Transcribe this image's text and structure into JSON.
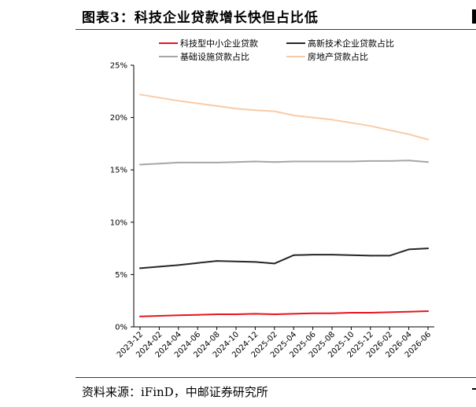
{
  "figure": {
    "title": "图表3：科技企业贷款增长快但占比低",
    "source": "资料来源：iFinD，中邮证券研究所"
  },
  "chart_data": {
    "type": "line",
    "x": [
      "2023-12",
      "2024-02",
      "2024-04",
      "2024-06",
      "2024-08",
      "2024-10",
      "2024-12",
      "2025-02",
      "2025-04",
      "2025-06",
      "2025-08",
      "2025-10",
      "2025-12",
      "2026-02",
      "2026-04",
      "2026-06"
    ],
    "ylim": [
      0,
      25
    ],
    "y_ticks": [
      "0%",
      "5%",
      "10%",
      "15%",
      "20%",
      "25%"
    ],
    "grid": false,
    "legend_position": "top",
    "series": [
      {
        "name": "科技型中小企业贷款",
        "color": "#e8141b",
        "values": [
          1.0,
          1.05,
          1.1,
          1.15,
          1.2,
          1.2,
          1.25,
          1.2,
          1.25,
          1.3,
          1.3,
          1.35,
          1.35,
          1.4,
          1.45,
          1.5
        ]
      },
      {
        "name": "高新技术企业贷款占比",
        "color": "#262626",
        "values": [
          5.6,
          5.75,
          5.9,
          6.1,
          6.3,
          6.25,
          6.2,
          6.05,
          6.85,
          6.9,
          6.9,
          6.85,
          6.8,
          6.8,
          7.4,
          7.5
        ]
      },
      {
        "name": "基础设施贷款占比",
        "color": "#a6a6a6",
        "values": [
          15.5,
          15.6,
          15.7,
          15.7,
          15.7,
          15.75,
          15.8,
          15.75,
          15.8,
          15.8,
          15.8,
          15.8,
          15.85,
          15.85,
          15.9,
          15.75
        ]
      },
      {
        "name": "房地产贷款占比",
        "color": "#f8cba6",
        "values": [
          22.2,
          21.9,
          21.6,
          21.35,
          21.1,
          20.85,
          20.7,
          20.6,
          20.2,
          20.0,
          19.8,
          19.5,
          19.2,
          18.8,
          18.4,
          17.9
        ]
      }
    ]
  }
}
